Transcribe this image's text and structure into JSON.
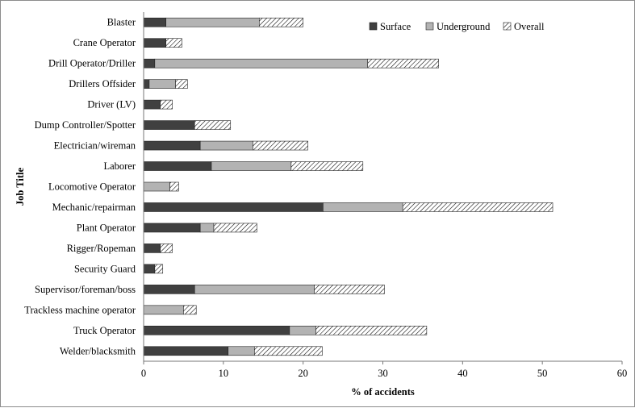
{
  "chart_data": {
    "type": "bar",
    "orientation": "horizontal",
    "stacked": true,
    "xlabel": "% of accidents",
    "ylabel": "Job Title",
    "xlim": [
      0,
      60
    ],
    "xticks": [
      0,
      10,
      20,
      30,
      40,
      50,
      60
    ],
    "grid": false,
    "legend_position": "top-right",
    "categories": [
      "Blaster",
      "Crane Operator",
      "Drill Operator/Driller",
      "Drillers Offsider",
      "Driver (LV)",
      "Dump Controller/Spotter",
      "Electrician/wireman",
      "Laborer",
      "Locomotive Operator",
      "Mechanic/repairman",
      "Plant Operator",
      "Rigger/Ropeman",
      "Security Guard",
      "Supervisor/foreman/boss",
      "Trackless machine operator",
      "Truck Operator",
      "Welder/blacksmith"
    ],
    "series": [
      {
        "name": "Surface",
        "color": "#404040",
        "values": [
          2.8,
          2.8,
          1.4,
          0.7,
          2.1,
          6.4,
          7.1,
          8.5,
          0,
          22.5,
          7.1,
          2.1,
          1.4,
          6.4,
          0,
          18.3,
          10.6
        ]
      },
      {
        "name": "Underground",
        "color": "#b3b3b3",
        "values": [
          11.7,
          0,
          26.7,
          3.3,
          0,
          0,
          6.6,
          10.0,
          3.3,
          10.0,
          1.7,
          0,
          0,
          15.0,
          5.0,
          3.3,
          3.3
        ]
      },
      {
        "name": "Overall",
        "color": "#ffffff",
        "pattern": "hatch",
        "values": [
          5.5,
          2.0,
          8.9,
          1.5,
          1.5,
          4.5,
          6.9,
          9.0,
          1.1,
          18.8,
          5.4,
          1.5,
          1.0,
          8.8,
          1.6,
          13.9,
          8.5
        ]
      }
    ]
  }
}
